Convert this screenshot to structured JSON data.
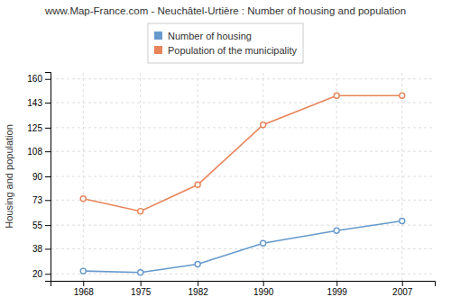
{
  "chart_data": {
    "type": "line",
    "title": "www.Map-France.com - Neuchâtel-Urtière : Number of housing and population",
    "ylabel": "Housing and population",
    "x": [
      1968,
      1975,
      1982,
      1990,
      1999,
      2007
    ],
    "series": [
      {
        "name": "Number of housing",
        "color": "#6699cc",
        "marker": "circle",
        "values": [
          22,
          21,
          27,
          42,
          51,
          58
        ]
      },
      {
        "name": "Population of the municipality",
        "color": "#e8845a",
        "marker": "circle",
        "values": [
          74,
          65,
          84,
          127,
          148,
          148
        ]
      }
    ],
    "xlim": [
      1964,
      2011
    ],
    "xticks": [
      1968,
      1975,
      1982,
      1990,
      1999,
      2007
    ],
    "ylim": [
      15,
      165
    ],
    "yticks": [
      20,
      38,
      55,
      73,
      90,
      108,
      125,
      143,
      160
    ],
    "grid": true,
    "legend": "top"
  }
}
